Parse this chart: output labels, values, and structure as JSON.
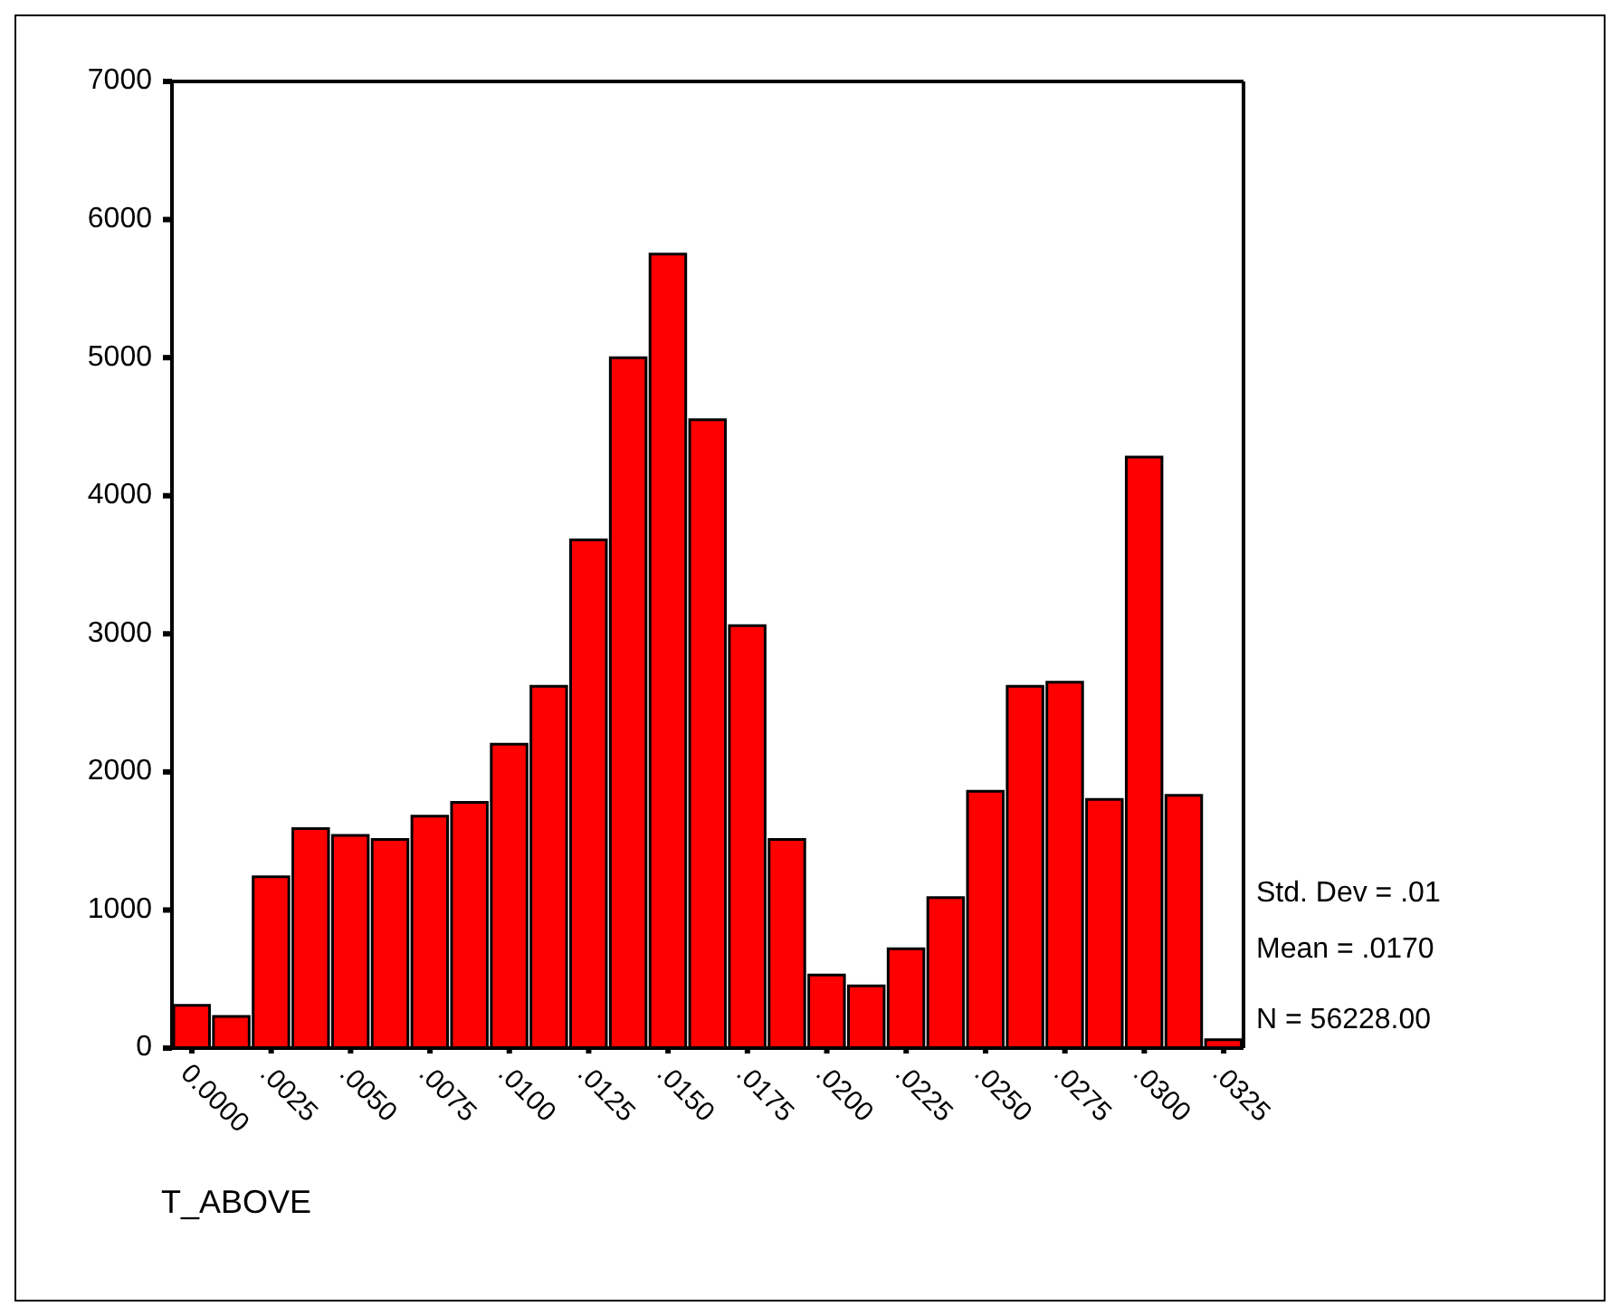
{
  "chart_data": {
    "type": "histogram",
    "xlabel": "T_ABOVE",
    "bins": [
      -0.000625,
      0.000625,
      0.001875,
      0.003125,
      0.004375,
      0.005625,
      0.006875,
      0.008125,
      0.009375,
      0.010625,
      0.011875,
      0.013125,
      0.014375,
      0.015625,
      0.016875,
      0.018125,
      0.019375,
      0.020625,
      0.021875,
      0.023125,
      0.024375,
      0.025625,
      0.026875,
      0.028125,
      0.029375,
      0.030625,
      0.031875,
      0.033125
    ],
    "values": [
      310,
      230,
      1240,
      1590,
      1540,
      1510,
      1680,
      1780,
      2200,
      2620,
      3680,
      5000,
      5750,
      4550,
      3060,
      1510,
      530,
      450,
      720,
      1090,
      1860,
      2620,
      2650,
      1800,
      4280,
      1830,
      60
    ],
    "color": "#ff0000",
    "xlim": [
      -0.000625,
      0.033125
    ],
    "xticks": [
      {
        "value": 0,
        "label": "0.0000"
      },
      {
        "value": 0.0025,
        "label": ".0025"
      },
      {
        "value": 0.005,
        "label": ".0050"
      },
      {
        "value": 0.0075,
        "label": ".0075"
      },
      {
        "value": 0.01,
        "label": ".0100"
      },
      {
        "value": 0.0125,
        "label": ".0125"
      },
      {
        "value": 0.015,
        "label": ".0150"
      },
      {
        "value": 0.0175,
        "label": ".0175"
      },
      {
        "value": 0.02,
        "label": ".0200"
      },
      {
        "value": 0.0225,
        "label": ".0225"
      },
      {
        "value": 0.025,
        "label": ".0250"
      },
      {
        "value": 0.0275,
        "label": ".0275"
      },
      {
        "value": 0.03,
        "label": ".0300"
      },
      {
        "value": 0.0325,
        "label": ".0325"
      }
    ],
    "ylim": [
      0,
      7000
    ],
    "yticks": [
      0,
      1000,
      2000,
      3000,
      4000,
      5000,
      6000,
      7000
    ],
    "annotations": [
      "Std. Dev = .01",
      "Mean = .0170",
      "N = 56228.00"
    ]
  }
}
